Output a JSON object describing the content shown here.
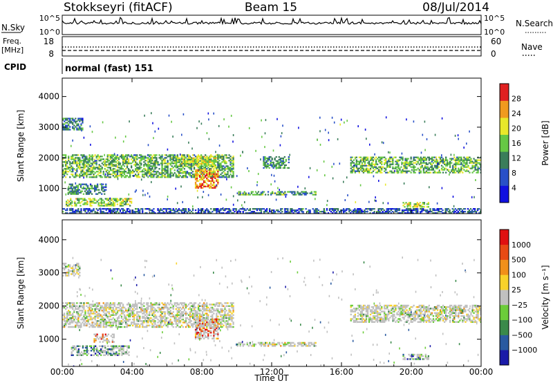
{
  "header": {
    "station": "Stokkseyri (fitACF)",
    "beam": "Beam 15",
    "date": "08/Jul/2014"
  },
  "noise_panel": {
    "left_label": "N.Sky",
    "right_label": "N.Search",
    "left_ticks": [
      "10^5",
      "10^0"
    ],
    "right_ticks": [
      "10^5",
      "10^0"
    ]
  },
  "freq_panel": {
    "left_label_1": "Freq.",
    "left_label_2": "[MHz]",
    "left_ticks": [
      "18",
      "8"
    ],
    "right_label": "Nave",
    "right_ticks": [
      "60",
      "0"
    ]
  },
  "cpid_panel": {
    "label": "CPID",
    "program": "normal (fast) 151"
  },
  "chart_data": [
    {
      "type": "heatmap",
      "title": "",
      "xlabel": "Time UT",
      "ylabel": "Slant Range [km]",
      "x_ticks": [
        "00:00",
        "04:00",
        "08:00",
        "12:00",
        "16:00",
        "20:00",
        "00:00"
      ],
      "xlim_hours": [
        0,
        24
      ],
      "y_ticks": [
        1000,
        2000,
        3000,
        4000
      ],
      "ylim": [
        180,
        4600
      ],
      "colorbar_label": "Power [dB]",
      "colorbar_ticks": [
        "4",
        "8",
        "12",
        "16",
        "20",
        "24",
        "28"
      ],
      "colorbar_colors": [
        "#1010e0",
        "#2850c8",
        "#3a7d5a",
        "#66c844",
        "#e8e82a",
        "#f09a1e",
        "#e02020"
      ],
      "ground_scatter_color": "#c0c0c0",
      "echo_regions": [
        {
          "t0": 0.0,
          "t1": 9.8,
          "r0": 1350,
          "r1": 2100,
          "level": 0.45
        },
        {
          "t0": 6.5,
          "t1": 8.8,
          "r0": 1700,
          "r1": 2050,
          "level": 0.6
        },
        {
          "t0": 7.6,
          "t1": 8.9,
          "r0": 1000,
          "r1": 1600,
          "level": 0.85
        },
        {
          "t0": 11.5,
          "t1": 13.0,
          "r0": 1650,
          "r1": 2050,
          "level": 0.35
        },
        {
          "t0": 16.5,
          "t1": 24.0,
          "r0": 1500,
          "r1": 2000,
          "level": 0.45
        },
        {
          "t0": 0.2,
          "t1": 2.8,
          "r0": 420,
          "r1": 650,
          "level": 0.55
        },
        {
          "t0": 2.8,
          "t1": 4.0,
          "r0": 420,
          "r1": 650,
          "level": 0.55
        },
        {
          "t0": 0.0,
          "t1": 1.2,
          "r0": 2900,
          "r1": 3300,
          "level": 0.3
        },
        {
          "t0": 0.3,
          "t1": 2.5,
          "r0": 800,
          "r1": 1150,
          "level": 0.3
        },
        {
          "t0": 10.0,
          "t1": 14.5,
          "r0": 780,
          "r1": 880,
          "level": 0.4
        },
        {
          "t0": 19.5,
          "t1": 21.0,
          "r0": 380,
          "r1": 520,
          "level": 0.6
        },
        {
          "t0": 0.0,
          "t1": 24.0,
          "r0": 180,
          "r1": 320,
          "level": 0.2
        }
      ]
    },
    {
      "type": "heatmap",
      "title": "",
      "xlabel": "Time UT",
      "ylabel": "Slant Range [km]",
      "x_ticks": [
        "00:00",
        "04:00",
        "08:00",
        "12:00",
        "16:00",
        "20:00",
        "00:00"
      ],
      "xlim_hours": [
        0,
        24
      ],
      "y_ticks": [
        1000,
        2000,
        3000,
        4000
      ],
      "ylim": [
        180,
        4600
      ],
      "colorbar_label": "Velocity [m s⁻¹]",
      "colorbar_ticks": [
        "1000",
        "500",
        "100",
        "25",
        "−25",
        "−100",
        "−500",
        "−1000"
      ],
      "colorbar_colors": [
        "#1a1aa8",
        "#2a5aa0",
        "#3a8a4a",
        "#6ccc3a",
        "#c0c0c0",
        "#f8d22a",
        "#f0901a",
        "#e84a14",
        "#e01010"
      ],
      "ground_scatter_color": "#c0c0c0",
      "echo_regions": [
        {
          "t0": 0.0,
          "t1": 9.8,
          "r0": 1350,
          "r1": 2100,
          "level": 0.5
        },
        {
          "t0": 7.6,
          "t1": 8.9,
          "r0": 1000,
          "r1": 1600,
          "level": 0.85
        },
        {
          "t0": 0.5,
          "t1": 3.8,
          "r0": 500,
          "r1": 800,
          "level": 0.2
        },
        {
          "t0": 1.8,
          "t1": 3.0,
          "r0": 900,
          "r1": 1150,
          "level": 0.8
        },
        {
          "t0": 16.5,
          "t1": 24.0,
          "r0": 1500,
          "r1": 2000,
          "level": 0.5
        },
        {
          "t0": 0.0,
          "t1": 1.0,
          "r0": 2900,
          "r1": 3300,
          "level": 0.5
        },
        {
          "t0": 10.0,
          "t1": 14.5,
          "r0": 780,
          "r1": 880,
          "level": 0.5
        },
        {
          "t0": 19.5,
          "t1": 21.0,
          "r0": 380,
          "r1": 520,
          "level": 0.2
        }
      ]
    }
  ]
}
